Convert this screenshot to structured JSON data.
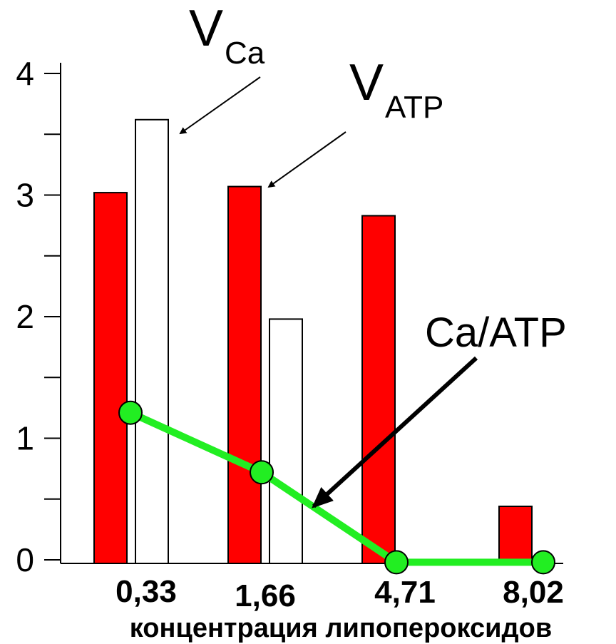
{
  "chart_data": {
    "type": "bar",
    "categories": [
      "0,33",
      "1,66",
      "4,71",
      "8,02"
    ],
    "xlabel": "концентрация липопероксидов",
    "ylabel": "",
    "ylim": [
      0,
      4
    ],
    "yticks": [
      "0",
      "1",
      "2",
      "3",
      "4"
    ],
    "grid": false,
    "series": [
      {
        "name": "V_ATP",
        "kind": "bar",
        "color": "#ff0000",
        "values": [
          3.02,
          3.07,
          2.83,
          0.44
        ]
      },
      {
        "name": "V_Ca",
        "kind": "bar",
        "color": "#ffffff",
        "values": [
          3.62,
          1.98,
          0,
          0
        ]
      },
      {
        "name": "Ca/ATP",
        "kind": "line",
        "color": "#22ee22",
        "values": [
          1.21,
          0.72,
          -0.02,
          -0.02
        ]
      }
    ],
    "annotations": [
      {
        "main": "V",
        "sub": "Ca",
        "points_to": "V_Ca"
      },
      {
        "main": "V",
        "sub": "ATP",
        "points_to": "V_ATP"
      },
      {
        "main": "Ca/ATP",
        "sub": "",
        "points_to": "Ca/ATP"
      }
    ]
  }
}
